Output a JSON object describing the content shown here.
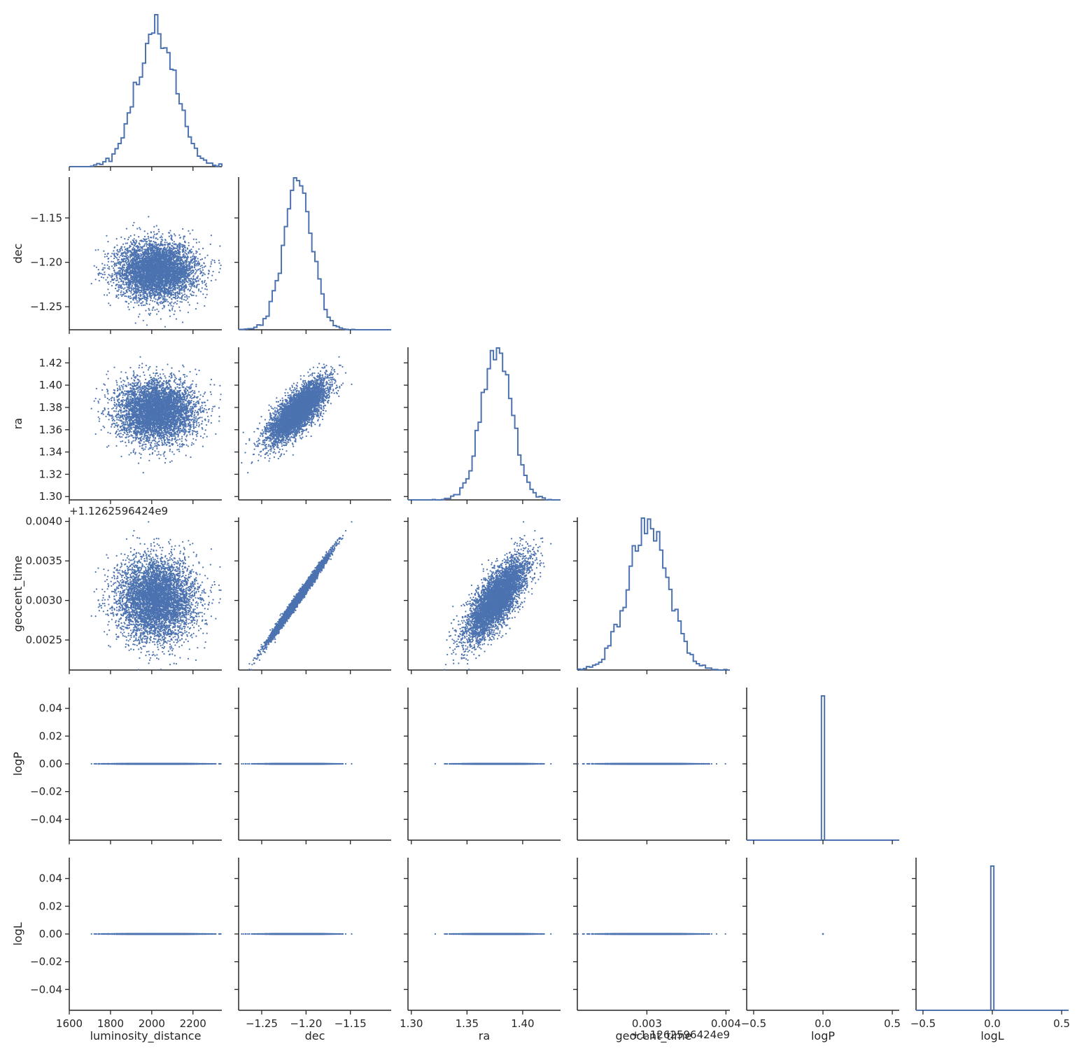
{
  "chart_data": {
    "type": "pairplot-corner",
    "color": "#4c72b0",
    "variables": [
      "luminosity_distance",
      "dec",
      "ra",
      "geocent_time",
      "logP",
      "logL"
    ],
    "axis_ticks": {
      "luminosity_distance": [
        "1600",
        "1800",
        "2000",
        "2200"
      ],
      "dec": [
        "−1.25",
        "−1.20",
        "−1.15"
      ],
      "ra": [
        "1.30",
        "1.35",
        "1.40"
      ],
      "ra_y": [
        "1.30",
        "1.32",
        "1.34",
        "1.36",
        "1.38",
        "1.40",
        "1.42"
      ],
      "geocent_time": [
        "0.003",
        "0.004"
      ],
      "geocent_time_y": [
        "0.0025",
        "0.0030",
        "0.0035",
        "0.0040"
      ],
      "dec_y": [
        "−1.25",
        "−1.20",
        "−1.15"
      ],
      "logP": [
        "−0.5",
        "0.0",
        "0.5"
      ],
      "logP_y": [
        "−0.04",
        "−0.02",
        "0.00",
        "0.02",
        "0.04"
      ],
      "logL": [
        "−0.5",
        "0.0",
        "0.5"
      ],
      "logL_y": [
        "−0.04",
        "−0.02",
        "0.00",
        "0.02",
        "0.04"
      ]
    },
    "offset_text": "+1.1262596424e9",
    "ranges": {
      "luminosity_distance": [
        1600,
        2340
      ],
      "dec": [
        -1.276,
        -1.104
      ],
      "ra": [
        1.297,
        1.434
      ],
      "geocent_time": [
        0.00212,
        0.00405
      ],
      "logP": [
        -0.55,
        0.55
      ],
      "logL": [
        -0.55,
        0.55
      ],
      "logP_y": [
        -0.055,
        0.055
      ],
      "logL_y": [
        -0.055,
        0.055
      ]
    },
    "marginals": {
      "luminosity_distance": {
        "mean": 2025,
        "sd": 95
      },
      "dec": {
        "mean": -1.209,
        "sd": 0.016
      },
      "ra": {
        "mean": 1.377,
        "sd": 0.0135
      },
      "geocent_time": {
        "mean": 0.00302,
        "sd": 0.00026
      },
      "logP": {
        "value": 0
      },
      "logL": {
        "value": 0
      }
    },
    "correlations": {
      "dec-ra": 0.75,
      "dec-geocent_time": 0.98,
      "ra-geocent_time": 0.72
    },
    "n_samples": 5000,
    "grid": false,
    "legend": "none"
  }
}
